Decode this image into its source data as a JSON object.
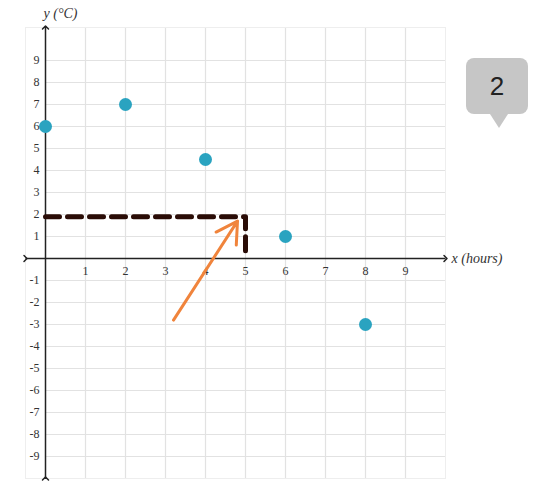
{
  "chart_data": {
    "type": "scatter",
    "x_label": "x (hours)",
    "y_label": "y (°C)",
    "x": [
      0,
      2,
      4,
      6,
      8
    ],
    "values": [
      6,
      7,
      4.5,
      1,
      -3
    ],
    "color": "#2aa3c0",
    "xlim": [
      -0.5,
      10
    ],
    "ylim": [
      -10,
      10.5
    ],
    "xticks": [
      1,
      2,
      3,
      4,
      5,
      6,
      7,
      8,
      9
    ],
    "yticks": [
      -9,
      -8,
      -7,
      -6,
      -5,
      -4,
      -3,
      -2,
      -1,
      1,
      2,
      3,
      4,
      5,
      6,
      7,
      8,
      9
    ],
    "grid": true,
    "origin": {
      "x": 0,
      "y": 0
    },
    "reference_point": {
      "x": 5,
      "y": 1.9
    },
    "arrow": {
      "from": {
        "x": 3.2,
        "y": -2.8
      },
      "to": {
        "x": 4.8,
        "y": 1.7
      }
    },
    "annotations": [
      {
        "text": "2"
      }
    ]
  }
}
